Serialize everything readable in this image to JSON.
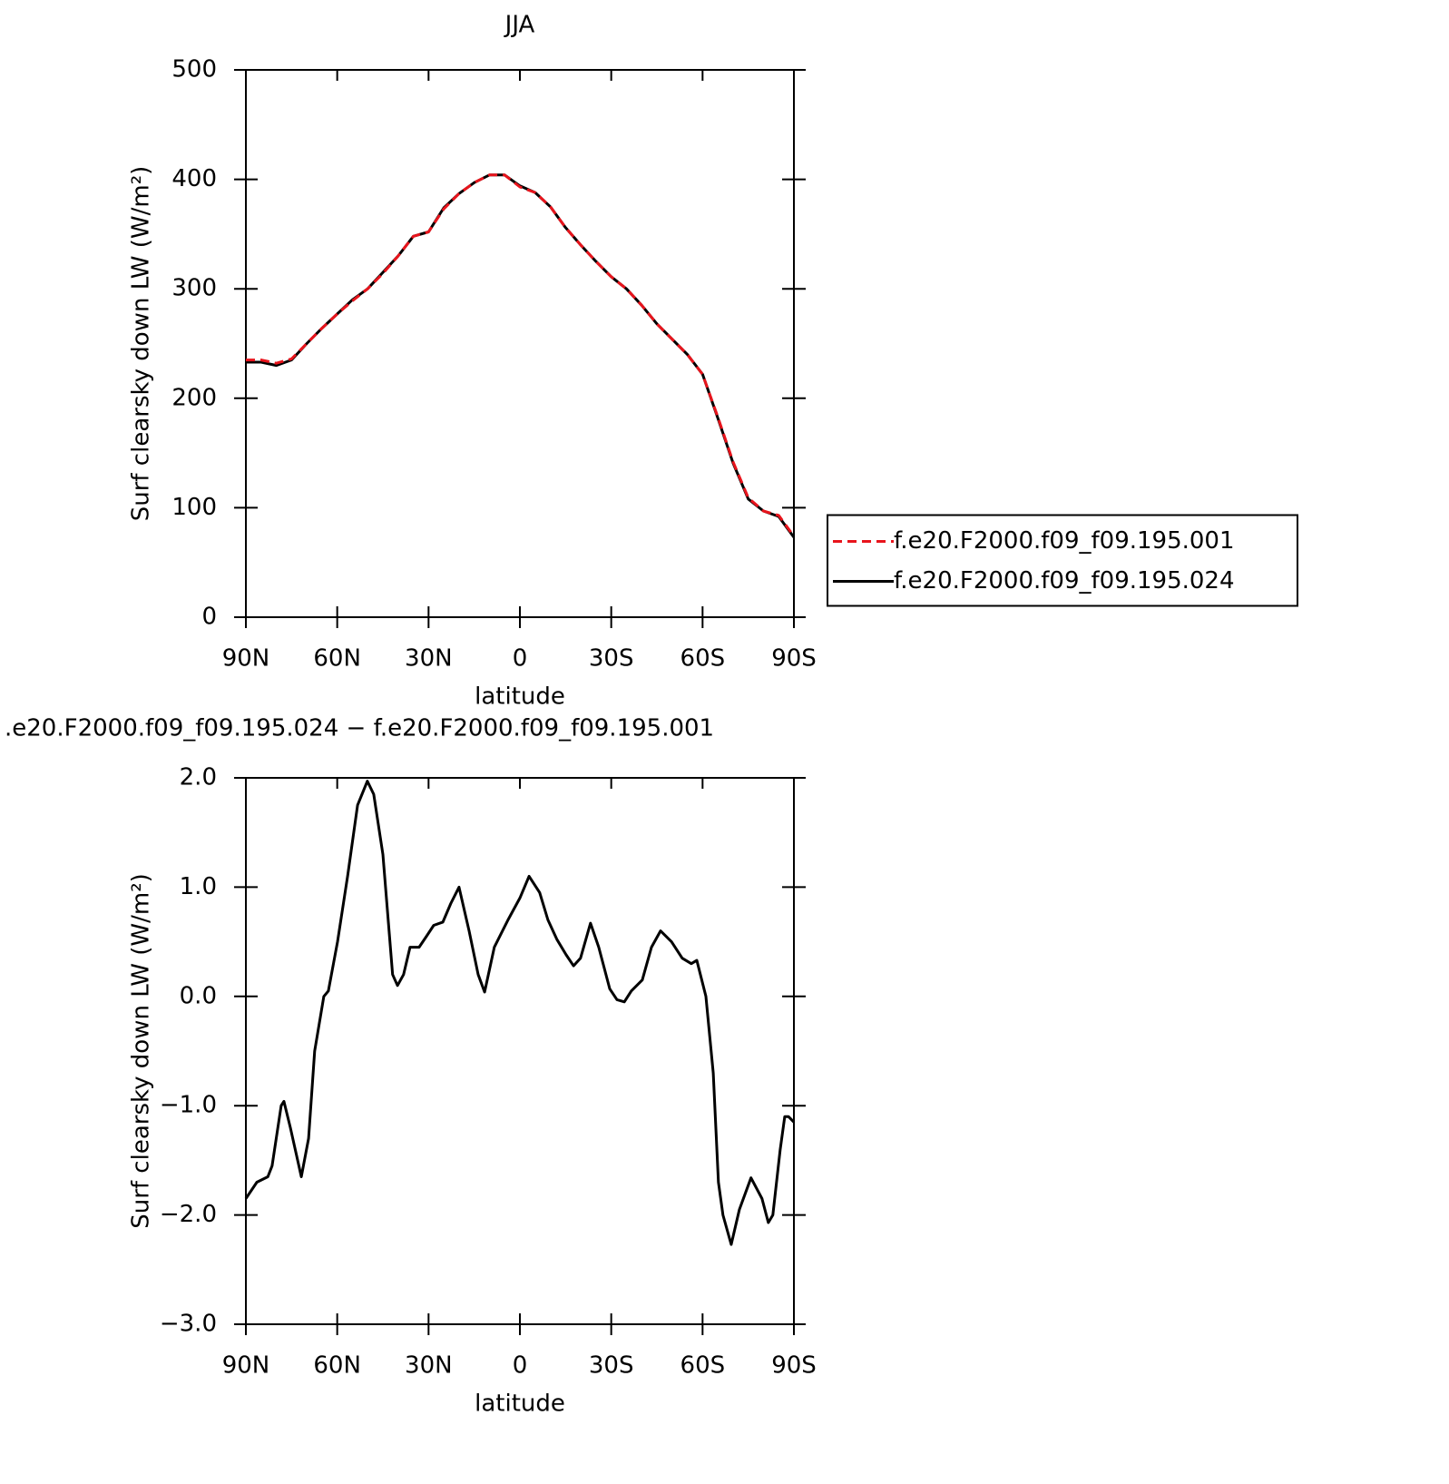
{
  "chart_data": [
    {
      "type": "line",
      "title": "JJA",
      "xlabel": "latitude",
      "ylabel": "Surf clearsky down LW (W/m²)",
      "x": [
        90,
        85,
        80,
        75,
        70,
        65,
        60,
        55,
        50,
        45,
        40,
        35,
        30,
        25,
        20,
        15,
        10,
        5,
        0,
        -5,
        -10,
        -15,
        -20,
        -25,
        -30,
        -35,
        -40,
        -45,
        -50,
        -55,
        -60,
        -65,
        -70,
        -75,
        -80,
        -85,
        -90
      ],
      "series": [
        {
          "name": "f.e20.F2000.f09_f09.195.001",
          "color": "#e8141c",
          "dashed": true,
          "values": [
            235,
            235,
            232,
            236,
            250,
            264,
            277,
            289,
            300,
            314,
            330,
            348,
            352,
            373,
            387,
            397,
            404,
            404,
            393,
            388,
            375,
            356,
            340,
            325,
            311,
            300,
            285,
            268,
            254,
            240,
            222,
            183,
            142,
            109,
            97,
            93,
            74
          ]
        },
        {
          "name": "f.e20.F2000.f09_f09.195.024",
          "color": "#000000",
          "dashed": false,
          "values": [
            233,
            233,
            230,
            235,
            250,
            264,
            277,
            290,
            300,
            315,
            330,
            348,
            352,
            374,
            387,
            397,
            404,
            404,
            394,
            388,
            375,
            356,
            340,
            325,
            311,
            300,
            285,
            268,
            254,
            240,
            222,
            182,
            141,
            108,
            97,
            92,
            73
          ]
        }
      ],
      "xlim": [
        90,
        -90
      ],
      "xticks": [
        {
          "value": 90,
          "label": "90N"
        },
        {
          "value": 60,
          "label": "60N"
        },
        {
          "value": 30,
          "label": "30N"
        },
        0,
        {
          "value": -30,
          "label": "30S"
        },
        {
          "value": -60,
          "label": "60S"
        },
        {
          "value": -90,
          "label": "90S"
        }
      ],
      "ylim": [
        0,
        500
      ],
      "yticks": [
        0,
        100,
        200,
        300,
        400,
        500
      ],
      "legend": "right"
    },
    {
      "type": "line",
      "title": ".e20.F2000.f09_f09.195.024 − f.e20.F2000.f09_f09.195.001",
      "xlabel": "latitude",
      "ylabel": "Surf clearsky down LW (W/m²)",
      "x": [
        90,
        86.4,
        82.8,
        81.4,
        78.4,
        77.5,
        75.4,
        71.8,
        69.4,
        67.4,
        64.4,
        62.9,
        59.9,
        56.6,
        53.3,
        50.1,
        48,
        45,
        41.8,
        40.2,
        38.2,
        36.1,
        33.1,
        30.7,
        28.3,
        25.3,
        22.7,
        20,
        16.7,
        13.7,
        11.6,
        8.4,
        3.9,
        0,
        -3,
        -6.5,
        -9.2,
        -12.2,
        -15.2,
        -17.6,
        -19.9,
        -23.2,
        -25.9,
        -29.5,
        -31.9,
        -34.3,
        -36.6,
        -40.2,
        -43.2,
        -46.2,
        -49.8,
        -53.3,
        -56.3,
        -58.1,
        -61.1,
        -63.5,
        -65.2,
        -66.7,
        -69.4,
        -72.1,
        -75.9,
        -79.5,
        -81.6,
        -83.1,
        -85.5,
        -87,
        -88.2,
        -90
      ],
      "values": [
        -1.85,
        -1.7,
        -1.65,
        -1.55,
        -1.0,
        -0.96,
        -1.2,
        -1.65,
        -1.3,
        -0.5,
        0.0,
        0.05,
        0.5,
        1.1,
        1.75,
        1.97,
        1.85,
        1.3,
        0.2,
        0.1,
        0.2,
        0.45,
        0.45,
        0.55,
        0.65,
        0.68,
        0.85,
        1.0,
        0.6,
        0.2,
        0.04,
        0.45,
        0.7,
        0.9,
        1.1,
        0.95,
        0.7,
        0.52,
        0.38,
        0.28,
        0.35,
        0.67,
        0.45,
        0.07,
        -0.03,
        -0.05,
        0.05,
        0.15,
        0.45,
        0.6,
        0.5,
        0.35,
        0.3,
        0.33,
        0.0,
        -0.7,
        -1.7,
        -2.0,
        -2.27,
        -1.95,
        -1.66,
        -1.85,
        -2.07,
        -2.0,
        -1.4,
        -1.1,
        -1.1,
        -1.15
      ],
      "color": "#000000",
      "xlim": [
        90,
        -90
      ],
      "xticks": [
        {
          "value": 90,
          "label": "90N"
        },
        {
          "value": 60,
          "label": "60N"
        },
        {
          "value": 30,
          "label": "30N"
        },
        0,
        {
          "value": -30,
          "label": "30S"
        },
        {
          "value": -60,
          "label": "60S"
        },
        {
          "value": -90,
          "label": "90S"
        }
      ],
      "ylim": [
        -3,
        2
      ],
      "yticks": [
        {
          "value": -3,
          "label": "−3.0"
        },
        {
          "value": -2,
          "label": "−2.0"
        },
        {
          "value": -1,
          "label": "−1.0"
        },
        {
          "value": 0,
          "label": "0.0"
        },
        {
          "value": 1,
          "label": "1.0"
        },
        {
          "value": 2,
          "label": "2.0"
        }
      ]
    }
  ]
}
